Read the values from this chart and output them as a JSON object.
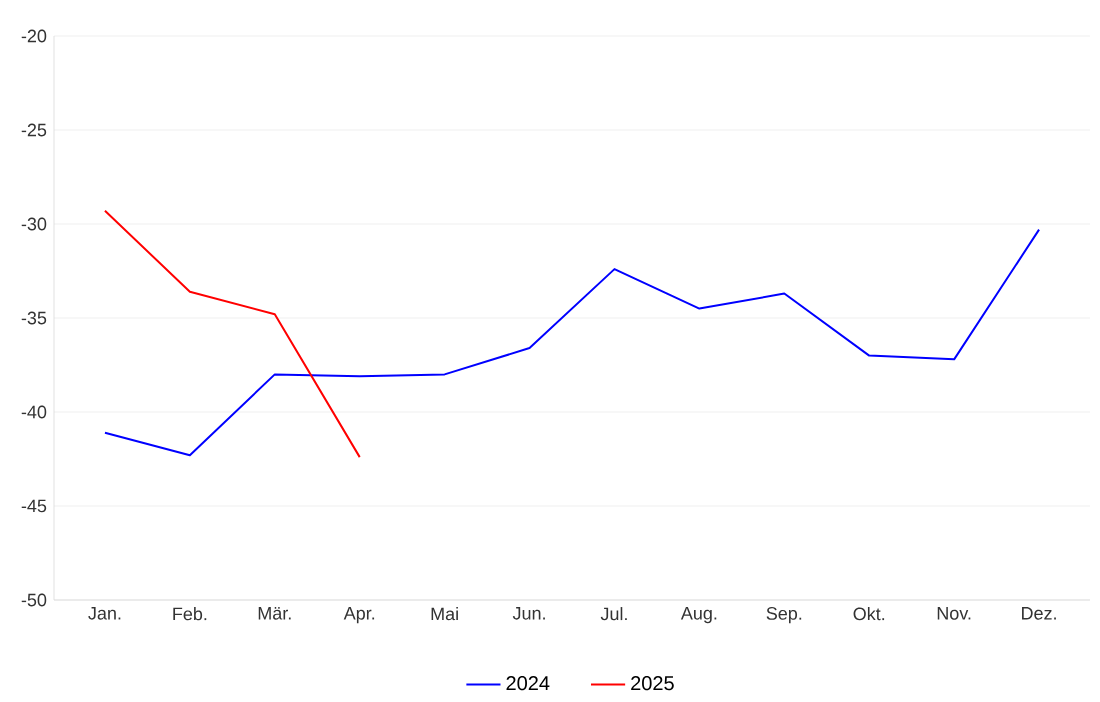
{
  "chart_data": {
    "type": "line",
    "categories": [
      "Jan.",
      "Feb.",
      "Mär.",
      "Apr.",
      "Mai",
      "Jun.",
      "Jul.",
      "Aug.",
      "Sep.",
      "Okt.",
      "Nov.",
      "Dez."
    ],
    "series": [
      {
        "name": "2024",
        "color": "#0000ff",
        "values": [
          -41.1,
          -42.3,
          -38.0,
          -38.1,
          -38.0,
          -36.6,
          -32.4,
          -34.5,
          -33.7,
          -37.0,
          -37.2,
          -30.3
        ]
      },
      {
        "name": "2025",
        "color": "#ff0000",
        "values": [
          -29.3,
          -33.6,
          -34.8,
          -42.4,
          null,
          null,
          null,
          null,
          null,
          null,
          null,
          null
        ]
      }
    ],
    "ylim": [
      -50,
      -20
    ],
    "yticks": [
      -50,
      -45,
      -40,
      -35,
      -30,
      -25,
      -20
    ],
    "grid": "y",
    "legend": "bottom",
    "marker": "none",
    "line_style": "solid"
  }
}
